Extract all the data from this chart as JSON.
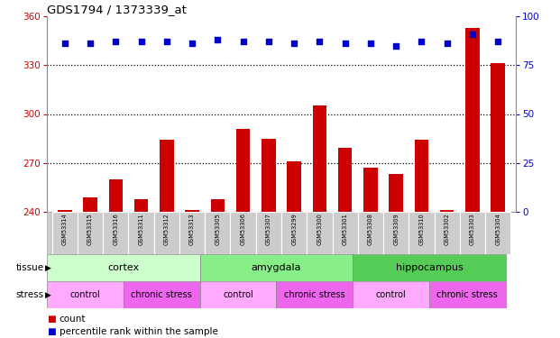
{
  "title": "GDS1794 / 1373339_at",
  "samples": [
    "GSM53314",
    "GSM53315",
    "GSM53316",
    "GSM53311",
    "GSM53312",
    "GSM53313",
    "GSM53305",
    "GSM53306",
    "GSM53307",
    "GSM53299",
    "GSM53300",
    "GSM53301",
    "GSM53308",
    "GSM53309",
    "GSM53310",
    "GSM53302",
    "GSM53303",
    "GSM53304"
  ],
  "bar_values": [
    241,
    249,
    260,
    248,
    284,
    241,
    248,
    291,
    285,
    271,
    305,
    279,
    267,
    263,
    284,
    241,
    353,
    331
  ],
  "dot_values": [
    86,
    86,
    87,
    87,
    87,
    86,
    88,
    87,
    87,
    86,
    87,
    86,
    86,
    85,
    87,
    86,
    91,
    87
  ],
  "ylim_left": [
    240,
    360
  ],
  "ylim_right": [
    0,
    100
  ],
  "yticks_left": [
    240,
    270,
    300,
    330,
    360
  ],
  "yticks_right": [
    0,
    25,
    50,
    75,
    100
  ],
  "hgrid_values": [
    270,
    300,
    330
  ],
  "bar_color": "#cc0000",
  "dot_color": "#0000cc",
  "tissue_groups": [
    {
      "label": "cortex",
      "start": 0,
      "end": 6,
      "color": "#ccffcc"
    },
    {
      "label": "amygdala",
      "start": 6,
      "end": 12,
      "color": "#88ee88"
    },
    {
      "label": "hippocampus",
      "start": 12,
      "end": 18,
      "color": "#55cc55"
    }
  ],
  "stress_groups": [
    {
      "label": "control",
      "start": 0,
      "end": 3,
      "color": "#ffaaff"
    },
    {
      "label": "chronic stress",
      "start": 3,
      "end": 6,
      "color": "#ee66ee"
    },
    {
      "label": "control",
      "start": 6,
      "end": 9,
      "color": "#ffaaff"
    },
    {
      "label": "chronic stress",
      "start": 9,
      "end": 12,
      "color": "#ee66ee"
    },
    {
      "label": "control",
      "start": 12,
      "end": 15,
      "color": "#ffaaff"
    },
    {
      "label": "chronic stress",
      "start": 15,
      "end": 18,
      "color": "#ee66ee"
    }
  ],
  "label_bg": "#cccccc",
  "tissue_label": "tissue",
  "stress_label": "stress",
  "legend_count_label": "count",
  "legend_pct_label": "percentile rank within the sample"
}
